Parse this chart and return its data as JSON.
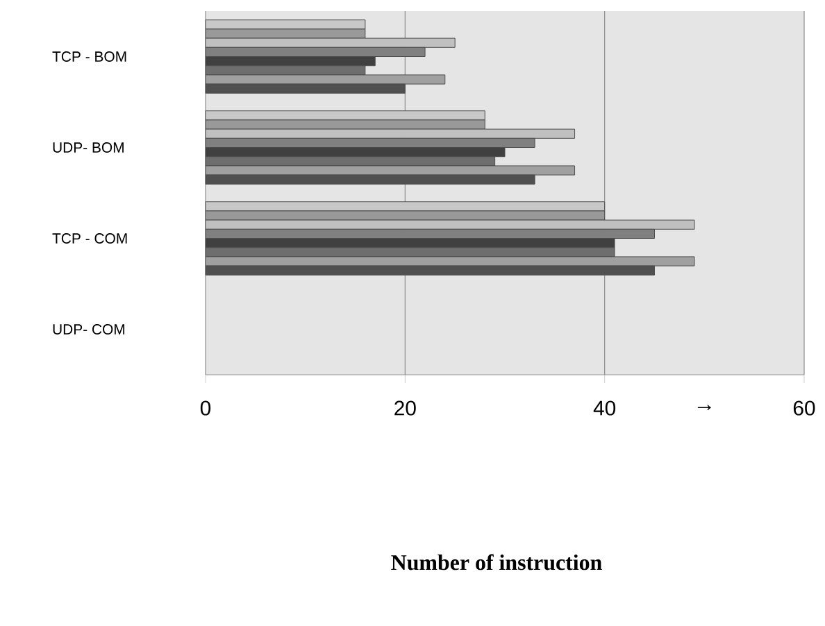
{
  "chart_data": {
    "type": "bar",
    "orientation": "horizontal",
    "categories": [
      "TCP - BOM",
      "UDP- BOM",
      "TCP - COM",
      "UDP- COM"
    ],
    "series": [
      {
        "color": "#c8c8c8",
        "values": [
          16,
          28,
          40,
          null
        ]
      },
      {
        "color": "#999999",
        "values": [
          16,
          28,
          40,
          null
        ]
      },
      {
        "color": "#c0c0c0",
        "values": [
          25,
          37,
          49,
          null
        ]
      },
      {
        "color": "#808080",
        "values": [
          22,
          33,
          45,
          null
        ]
      },
      {
        "color": "#404040",
        "values": [
          17,
          30,
          41,
          null
        ]
      },
      {
        "color": "#6e6e6e",
        "values": [
          16,
          29,
          41,
          null
        ]
      },
      {
        "color": "#a0a0a0",
        "values": [
          24,
          37,
          49,
          null
        ]
      },
      {
        "color": "#505050",
        "values": [
          20,
          33,
          45,
          null
        ]
      }
    ],
    "xlim": [
      0,
      60
    ],
    "xticks": [
      0,
      20,
      40,
      60
    ],
    "grid": "x",
    "annotations": [
      "→",
      "Number of instruction"
    ]
  }
}
